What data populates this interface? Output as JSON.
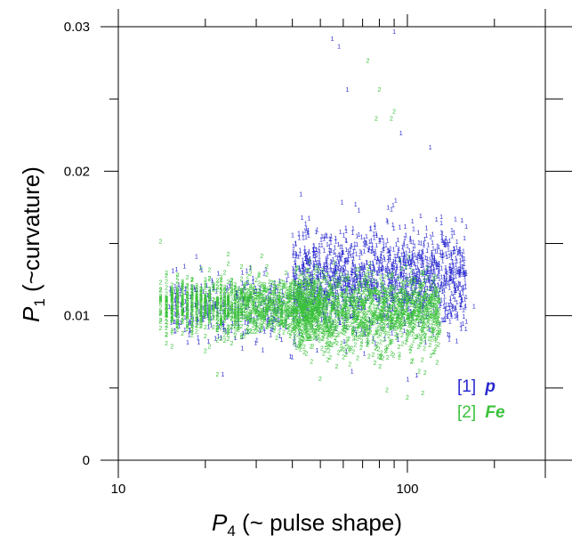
{
  "chart_data": {
    "type": "scatter",
    "title": "",
    "x_axis": {
      "scale": "log",
      "range": [
        10,
        300
      ],
      "label_symbol": "P",
      "label_subscript": "4",
      "label_text": " (~ pulse shape)",
      "tick_labels": [
        {
          "value": 10,
          "label": "10"
        },
        {
          "value": 100,
          "label": "100"
        }
      ],
      "major_ticks": [
        10,
        100
      ],
      "minor_ticks": [
        20,
        30,
        40,
        50,
        60,
        70,
        80,
        90,
        200,
        300
      ]
    },
    "y_axis": {
      "scale": "linear",
      "range": [
        0,
        0.03
      ],
      "label_symbol": "P",
      "label_subscript": "1",
      "label_text": " (~curvature)",
      "tick_labels": [
        {
          "value": 0,
          "label": "0"
        },
        {
          "value": 0.01,
          "label": "0.01"
        },
        {
          "value": 0.02,
          "label": "0.02"
        },
        {
          "value": 0.03,
          "label": "0.03"
        }
      ],
      "minor_ticks": [
        0.005,
        0.015,
        0.025
      ]
    },
    "grid": false,
    "legend_position": "bottom-right",
    "series": [
      {
        "name": "p",
        "legend_index": "[1]",
        "marker": "1",
        "color": "#2a2ad0",
        "clusters": [
          {
            "x_range": [
              40,
              160
            ],
            "y_center": 0.0125,
            "y_spread": 0.0028,
            "count": 1500
          },
          {
            "x_range": [
              15,
              45
            ],
            "y_center": 0.0105,
            "y_spread": 0.0018,
            "count": 350
          }
        ],
        "outliers": [
          [
            55,
            0.029
          ],
          [
            58,
            0.0285
          ],
          [
            90,
            0.0295
          ],
          [
            95,
            0.0225
          ],
          [
            120,
            0.0215
          ],
          [
            62,
            0.0255
          ],
          [
            170,
            0.0105
          ],
          [
            40,
            0.007
          ],
          [
            23,
            0.0058
          ]
        ]
      },
      {
        "name": "Fe",
        "legend_index": "[2]",
        "marker": "2",
        "color": "#3cc23c",
        "clusters": [
          {
            "x_range": [
              14,
              50
            ],
            "y_center": 0.0105,
            "y_spread": 0.0016,
            "count": 1300
          },
          {
            "x_range": [
              40,
              130
            ],
            "y_center": 0.01,
            "y_spread": 0.0022,
            "count": 1300
          }
        ],
        "outliers": [
          [
            73,
            0.0275
          ],
          [
            80,
            0.0255
          ],
          [
            78,
            0.0235
          ],
          [
            88,
            0.0235
          ],
          [
            90,
            0.024
          ],
          [
            85,
            0.0047
          ],
          [
            100,
            0.0042
          ],
          [
            113,
            0.0045
          ],
          [
            22,
            0.0058
          ],
          [
            14,
            0.015
          ]
        ]
      }
    ]
  },
  "legend": [
    {
      "index": "[1]",
      "name": "p",
      "color": "#2a2ad0"
    },
    {
      "index": "[2]",
      "name": "Fe",
      "color": "#3cc23c"
    }
  ]
}
